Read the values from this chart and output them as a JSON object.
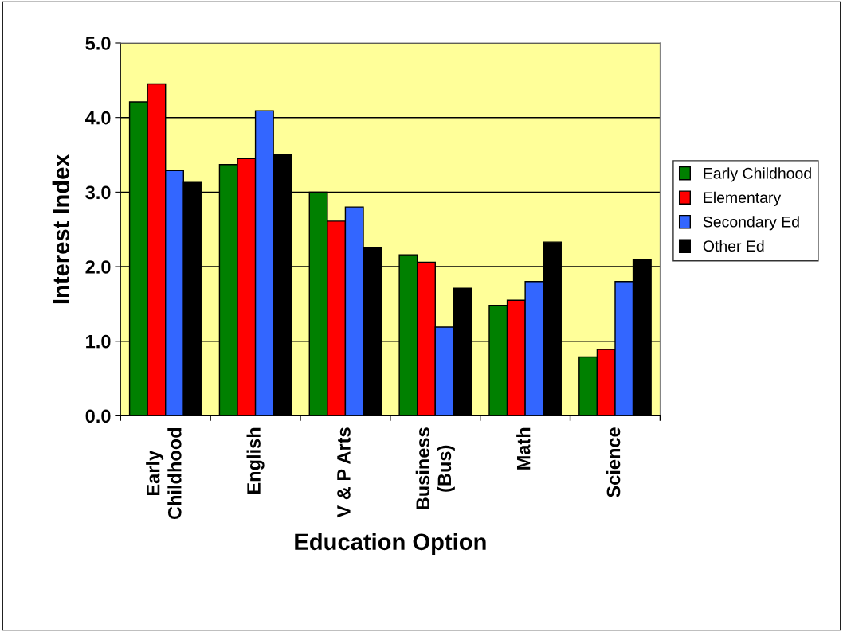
{
  "chart_data": {
    "type": "bar",
    "xlabel": "Education Option",
    "ylabel": "Interest Index",
    "categories": [
      "Early\nChildhood",
      "English",
      "V & P Arts",
      "Business\n(Bus)",
      "Math",
      "Science"
    ],
    "series": [
      {
        "name": "Early Childhood",
        "color": "#008000",
        "values": [
          4.21,
          3.37,
          3.0,
          2.16,
          1.48,
          0.79
        ]
      },
      {
        "name": "Elementary",
        "color": "#ff0000",
        "values": [
          4.45,
          3.45,
          2.61,
          2.06,
          1.55,
          0.89
        ]
      },
      {
        "name": "Secondary Ed",
        "color": "#3366ff",
        "values": [
          3.29,
          4.09,
          2.8,
          1.19,
          1.8,
          1.8
        ]
      },
      {
        "name": "Other Ed",
        "color": "#000000",
        "values": [
          3.13,
          3.51,
          2.26,
          1.71,
          2.33,
          2.09
        ]
      }
    ],
    "ylim": [
      0,
      5
    ],
    "yticks": [
      {
        "value": 0,
        "label": "0.0"
      },
      {
        "value": 1,
        "label": "1.0"
      },
      {
        "value": 2,
        "label": "2.0"
      },
      {
        "value": 3,
        "label": "3.0"
      },
      {
        "value": 4,
        "label": "4.0"
      },
      {
        "value": 5,
        "label": "5.0"
      }
    ],
    "grid": "y",
    "legend": "right"
  }
}
